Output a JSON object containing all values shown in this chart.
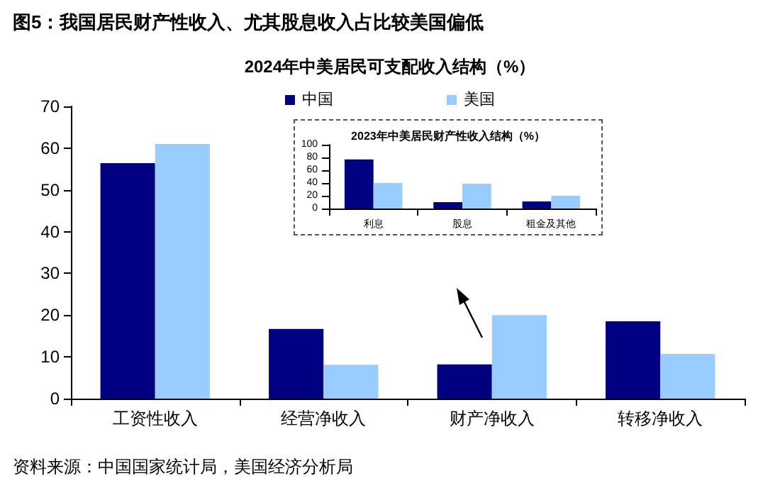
{
  "chart_data": [
    {
      "type": "bar",
      "title": "图5：我国居民财产性收入、尤其股息收入占比较美国偏低",
      "subtitle": "2024年中美居民可支配收入结构（%）",
      "categories": [
        "工资性收入",
        "经营净收入",
        "财产净收入",
        "转移净收入"
      ],
      "series": [
        {
          "name": "中国",
          "color": "#000080",
          "values": [
            56.4,
            16.7,
            8.2,
            18.5
          ]
        },
        {
          "name": "美国",
          "color": "#99ccff",
          "values": [
            61,
            8.1,
            20,
            10.7
          ]
        }
      ],
      "ylim": [
        0,
        70
      ],
      "yticks": [
        0,
        10,
        20,
        30,
        40,
        50,
        60,
        70
      ],
      "legend": "top",
      "annotations": [
        "资料来源：中国国家统计局，美国经济分析局"
      ]
    },
    {
      "type": "bar",
      "title": "2023年中美居民财产性收入结构（%）",
      "categories": [
        "利息",
        "股息",
        "租金及其他"
      ],
      "series": [
        {
          "color": "#000080",
          "values": [
            77,
            10,
            11
          ]
        },
        {
          "color": "#99ccff",
          "values": [
            40,
            39,
            20
          ]
        }
      ],
      "ylim": [
        0,
        100
      ],
      "yticks": [
        0,
        20,
        40,
        60,
        80,
        100
      ]
    }
  ]
}
